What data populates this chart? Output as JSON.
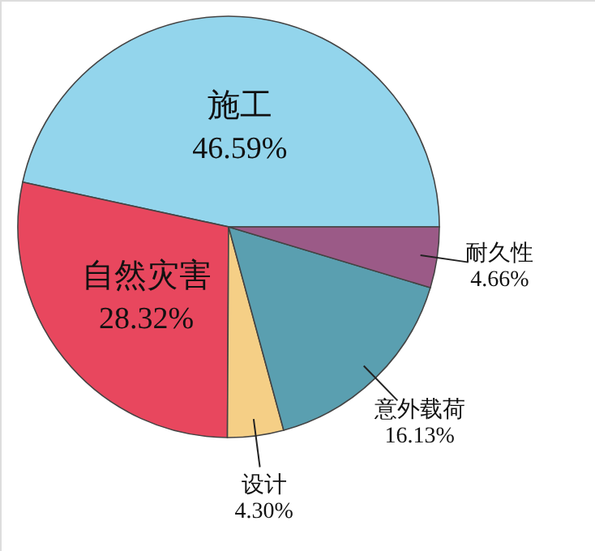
{
  "chart_data": {
    "type": "pie",
    "categories": [
      "施工",
      "自然灾害",
      "设计",
      "意外载荷",
      "耐久性"
    ],
    "values": [
      46.59,
      28.32,
      4.3,
      16.13,
      4.66
    ],
    "value_labels": [
      "46.59%",
      "28.32%",
      "4.30%",
      "16.13%",
      "4.66%"
    ],
    "colors": [
      "#93d5ec",
      "#e8475e",
      "#f5cf86",
      "#5a9fb0",
      "#9b5a87"
    ]
  }
}
